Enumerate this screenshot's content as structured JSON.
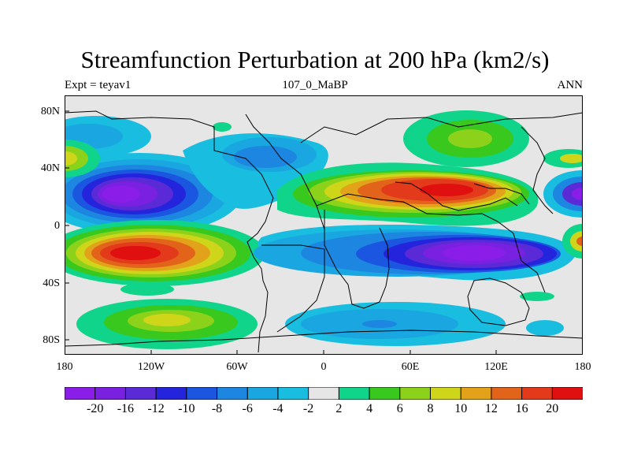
{
  "title": "Streamfunction Perturbation at 200 hPa (km2/s)",
  "subtitle": {
    "left": "Expt = teyav1",
    "center": "107_0_MaBP",
    "right": "ANN"
  },
  "axes": {
    "lat_labels": [
      "80N",
      "40N",
      "0",
      "40S",
      "80S"
    ],
    "lon_labels": [
      "180",
      "120W",
      "60W",
      "0",
      "60E",
      "120E",
      "180"
    ]
  },
  "colorbar": {
    "labels": [
      "-20",
      "-16",
      "-12",
      "-10",
      "-8",
      "-6",
      "-4",
      "-2",
      "2",
      "4",
      "6",
      "8",
      "10",
      "12",
      "16",
      "20"
    ],
    "colors": [
      "#8a1ee8",
      "#7a20e0",
      "#5a2ad6",
      "#2424dc",
      "#1b56e0",
      "#1c86e0",
      "#1aa6e0",
      "#18bde0",
      "#e6e6e6",
      "#10d48a",
      "#38c81e",
      "#8cd21a",
      "#cfd61a",
      "#e2a21a",
      "#e2641a",
      "#e23a1a",
      "#e01010"
    ]
  },
  "map_regions": [
    {
      "label": "-16",
      "lon": -160,
      "lat": 22
    },
    {
      "label": "16",
      "lon": -145,
      "lat": -20
    },
    {
      "label": "4",
      "lon": -130,
      "lat": -65
    },
    {
      "label": "16",
      "lon": 80,
      "lat": 25
    },
    {
      "label": "-16",
      "lon": 90,
      "lat": -20
    },
    {
      "label": "-4",
      "lon": 50,
      "lat": -65
    }
  ]
}
